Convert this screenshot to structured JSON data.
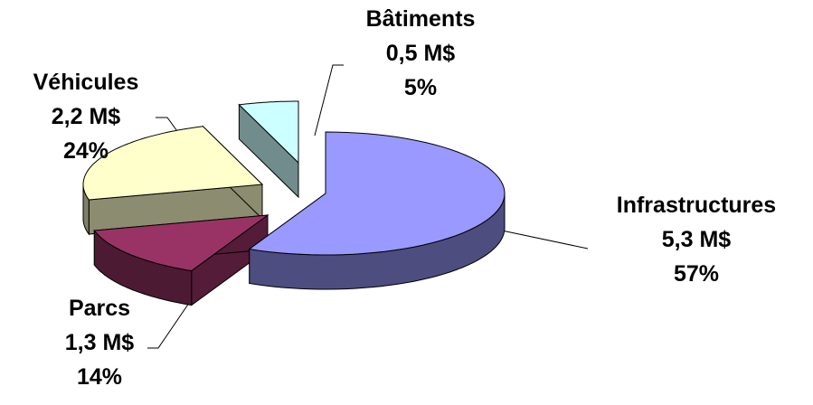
{
  "chart_data": {
    "type": "pie",
    "title": "",
    "slices": [
      {
        "name": "Infrastructures",
        "amount": "5,3 M$",
        "percent": "57%",
        "value": 5.3,
        "color": "#9999FF"
      },
      {
        "name": "Bâtiments",
        "amount": "0,5 M$",
        "percent": "5%",
        "value": 0.5,
        "color": "#CCFFFF"
      },
      {
        "name": "Véhicules",
        "amount": "2,2 M$",
        "percent": "24%",
        "value": 2.2,
        "color": "#FFFFCC"
      },
      {
        "name": "Parcs",
        "amount": "1,3 M$",
        "percent": "14%",
        "value": 1.3,
        "color": "#993366"
      }
    ],
    "legend": "none",
    "style": "3d-exploded"
  }
}
